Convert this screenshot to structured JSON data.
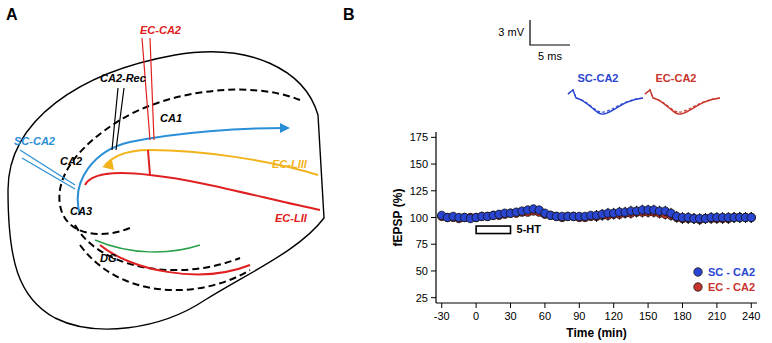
{
  "chart_data": {
    "type": "scatter",
    "panel_label": "B",
    "x_label": "Time (min)",
    "y_label": "fEPSP (%)",
    "x": [
      -30,
      -25,
      -20,
      -15,
      -10,
      -5,
      0,
      5,
      10,
      15,
      20,
      25,
      30,
      35,
      40,
      45,
      50,
      55,
      60,
      65,
      70,
      75,
      80,
      85,
      90,
      95,
      100,
      105,
      110,
      115,
      120,
      125,
      130,
      135,
      140,
      145,
      150,
      155,
      160,
      165,
      170,
      175,
      180,
      185,
      190,
      195,
      200,
      205,
      210,
      215,
      220,
      225,
      230,
      235,
      240
    ],
    "series": [
      {
        "name": "SC - CA2",
        "color": "#2a45d1",
        "marker": "circle",
        "values": [
          102,
          100,
          101,
          100,
          100,
          99,
          100,
          101,
          101,
          102,
          103,
          104,
          104,
          105,
          106,
          107,
          108,
          107,
          104,
          102,
          101,
          101,
          101,
          101,
          101,
          101,
          102,
          102,
          103,
          104,
          104,
          105,
          105,
          106,
          106,
          107,
          107,
          107,
          106,
          106,
          104,
          101,
          100,
          100,
          99,
          99,
          99,
          100,
          100,
          100,
          100,
          100,
          100,
          100,
          100
        ],
        "errors": [
          2,
          2,
          2,
          2,
          2,
          2,
          2,
          2,
          2,
          2,
          2,
          2,
          2,
          3,
          3,
          3,
          3,
          3,
          3,
          3,
          3,
          3,
          3,
          3,
          3,
          3,
          3,
          5,
          5,
          5,
          5,
          5,
          5,
          5,
          5,
          5,
          5,
          5,
          5,
          5,
          5,
          5,
          5,
          5,
          5,
          5,
          5,
          5,
          5,
          5,
          5,
          5,
          5,
          5,
          5
        ]
      },
      {
        "name": "EC - CA2",
        "color": "#c8342b",
        "marker": "circle",
        "values": [
          101,
          100,
          100,
          99,
          100,
          100,
          100,
          101,
          101,
          102,
          102,
          103,
          104,
          104,
          105,
          105,
          106,
          105,
          103,
          102,
          101,
          100,
          101,
          101,
          100,
          100,
          101,
          101,
          102,
          102,
          103,
          103,
          104,
          104,
          105,
          105,
          105,
          105,
          104,
          103,
          102,
          100,
          99,
          99,
          99,
          98,
          99,
          99,
          99,
          99,
          99,
          100,
          100,
          100,
          100
        ],
        "errors": [
          2,
          2,
          2,
          2,
          2,
          2,
          2,
          2,
          2,
          2,
          2,
          2,
          2,
          3,
          3,
          3,
          3,
          3,
          3,
          3,
          3,
          3,
          3,
          3,
          3,
          3,
          3,
          5,
          5,
          5,
          5,
          5,
          5,
          5,
          5,
          5,
          5,
          5,
          5,
          5,
          5,
          5,
          5,
          5,
          5,
          5,
          5,
          5,
          5,
          5,
          5,
          5,
          5,
          5,
          5
        ]
      }
    ],
    "xlim": [
      -35,
      245
    ],
    "ylim": [
      20,
      180
    ],
    "xticks": [
      -30,
      0,
      30,
      60,
      90,
      120,
      150,
      180,
      210,
      240
    ],
    "yticks": [
      25,
      50,
      75,
      100,
      125,
      150,
      175
    ],
    "legend": "lower right",
    "drug_window": {
      "label": "5-HT",
      "start": 0,
      "end": 30,
      "low": 85,
      "high": 92
    },
    "inset": {
      "scale_y": "3 mV",
      "scale_x": "5 ms",
      "trace_labels": [
        "SC-CA2",
        "EC-CA2"
      ]
    }
  },
  "diagram": {
    "panel_label": "A",
    "labels": [
      "CA2-Rec",
      "EC-CA2",
      "CA1",
      "SC-CA2",
      "CA2",
      "CA3",
      "EC-LIII",
      "EC-LII",
      "DG"
    ]
  }
}
